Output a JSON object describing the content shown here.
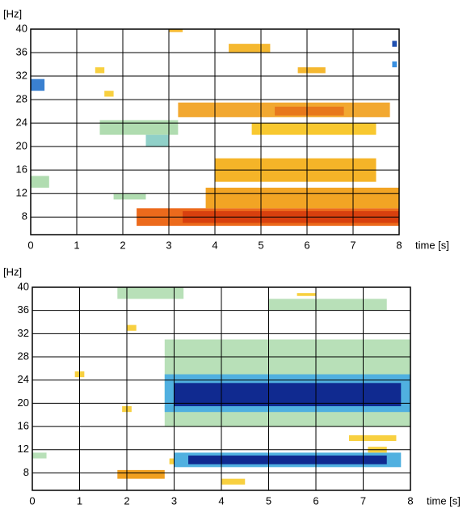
{
  "chart_data": [
    {
      "type": "heatmap",
      "ylabel": "[Hz]",
      "xlabel": "time [s]",
      "xlim": [
        0,
        8
      ],
      "ylim": [
        5,
        40
      ],
      "xticks": [
        0,
        1,
        2,
        3,
        4,
        5,
        6,
        7,
        8
      ],
      "yticks": [
        8,
        12,
        16,
        20,
        24,
        28,
        32,
        36,
        40
      ],
      "grid": true,
      "cells": [
        {
          "x": [
            2.3,
            8
          ],
          "y": [
            6.5,
            9.5
          ],
          "color": "#ec6a1c"
        },
        {
          "x": [
            3.3,
            8
          ],
          "y": [
            7,
            9
          ],
          "color": "#d8400e"
        },
        {
          "x": [
            3.8,
            8
          ],
          "y": [
            9.5,
            13
          ],
          "color": "#f2a424"
        },
        {
          "x": [
            4,
            7.5
          ],
          "y": [
            14,
            18
          ],
          "color": "#f5b428"
        },
        {
          "x": [
            3.2,
            7.8
          ],
          "y": [
            25,
            27.5
          ],
          "color": "#f2a830"
        },
        {
          "x": [
            5.3,
            6.8
          ],
          "y": [
            25.3,
            26.8
          ],
          "color": "#e8781c"
        },
        {
          "x": [
            4.8,
            7.5
          ],
          "y": [
            22,
            24
          ],
          "color": "#f8c830"
        },
        {
          "x": [
            4.3,
            5.2
          ],
          "y": [
            36,
            37.5
          ],
          "color": "#f5b830"
        },
        {
          "x": [
            5.8,
            6.4
          ],
          "y": [
            32.5,
            33.5
          ],
          "color": "#f5b830"
        },
        {
          "x": [
            3,
            3.3
          ],
          "y": [
            39.5,
            40
          ],
          "color": "#f5b830"
        },
        {
          "x": [
            1.4,
            1.6
          ],
          "y": [
            32.5,
            33.5
          ],
          "color": "#f8d040"
        },
        {
          "x": [
            1.6,
            1.8
          ],
          "y": [
            28.5,
            29.5
          ],
          "color": "#f8d040"
        },
        {
          "x": [
            1.5,
            3.2
          ],
          "y": [
            22,
            24.5
          ],
          "color": "#b0dcb0"
        },
        {
          "x": [
            2.5,
            3
          ],
          "y": [
            20,
            22
          ],
          "color": "#90d0c8"
        },
        {
          "x": [
            1.8,
            2.5
          ],
          "y": [
            11,
            12
          ],
          "color": "#b0dcb0"
        },
        {
          "x": [
            0,
            0.4
          ],
          "y": [
            13,
            15
          ],
          "color": "#b0dcb0"
        },
        {
          "x": [
            0,
            0.3
          ],
          "y": [
            29.5,
            31.5
          ],
          "color": "#3a80d0"
        },
        {
          "x": [
            7.85,
            7.95
          ],
          "y": [
            37,
            38
          ],
          "color": "#2050b0"
        },
        {
          "x": [
            7.85,
            7.95
          ],
          "y": [
            33.5,
            34.5
          ],
          "color": "#3a90e0"
        }
      ]
    },
    {
      "type": "heatmap",
      "ylabel": "[Hz]",
      "xlabel": "time [s]",
      "xlim": [
        0,
        8
      ],
      "ylim": [
        5,
        40
      ],
      "xticks": [
        0,
        1,
        2,
        3,
        4,
        5,
        6,
        7,
        8
      ],
      "yticks": [
        8,
        12,
        16,
        20,
        24,
        28,
        32,
        36,
        40
      ],
      "grid": true,
      "cells": [
        {
          "x": [
            2.8,
            8
          ],
          "y": [
            16,
            31
          ],
          "color": "#b8e0b8"
        },
        {
          "x": [
            2.8,
            8
          ],
          "y": [
            18.5,
            25
          ],
          "color": "#50b0e0"
        },
        {
          "x": [
            3,
            7.8
          ],
          "y": [
            19.5,
            23.5
          ],
          "color": "#102a90"
        },
        {
          "x": [
            3,
            7.8
          ],
          "y": [
            9,
            11.5
          ],
          "color": "#50b0e0"
        },
        {
          "x": [
            3.3,
            7.5
          ],
          "y": [
            9.5,
            11
          ],
          "color": "#102a90"
        },
        {
          "x": [
            0,
            0.3
          ],
          "y": [
            10.5,
            11.5
          ],
          "color": "#b8e0b8"
        },
        {
          "x": [
            1.8,
            2.8
          ],
          "y": [
            7,
            8.5
          ],
          "color": "#f0a020"
        },
        {
          "x": [
            2.9,
            3
          ],
          "y": [
            9.5,
            10.5
          ],
          "color": "#f8d040"
        },
        {
          "x": [
            1.9,
            2.1
          ],
          "y": [
            18.5,
            19.5
          ],
          "color": "#f8d040"
        },
        {
          "x": [
            7.1,
            7.5
          ],
          "y": [
            11.5,
            12.5
          ],
          "color": "#f8d040"
        },
        {
          "x": [
            6.7,
            7.7
          ],
          "y": [
            13.5,
            14.5
          ],
          "color": "#f8d040"
        },
        {
          "x": [
            0.9,
            1.1
          ],
          "y": [
            24.5,
            25.5
          ],
          "color": "#f8d040"
        },
        {
          "x": [
            2,
            2.2
          ],
          "y": [
            32.5,
            33.5
          ],
          "color": "#f8d040"
        },
        {
          "x": [
            5.6,
            6
          ],
          "y": [
            38.5,
            39
          ],
          "color": "#f8d040"
        },
        {
          "x": [
            4,
            4.5
          ],
          "y": [
            6,
            7
          ],
          "color": "#f8d040"
        },
        {
          "x": [
            5,
            7.5
          ],
          "y": [
            36,
            38
          ],
          "color": "#b8e0b8"
        },
        {
          "x": [
            1.8,
            3.2
          ],
          "y": [
            38,
            40
          ],
          "color": "#b8e0b8"
        }
      ]
    }
  ]
}
